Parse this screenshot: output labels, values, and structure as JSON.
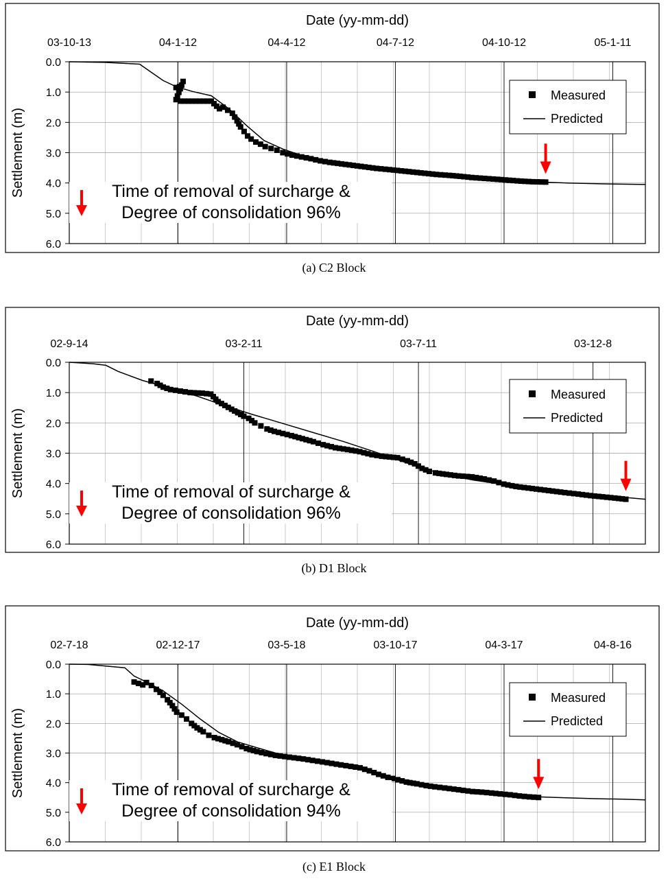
{
  "chart_data": [
    {
      "type": "scatter",
      "caption": "(a) C2 Block",
      "xlabel": "Date (yy-mm-dd)",
      "ylabel": "Settlement (m)",
      "x_tick_labels": [
        "03-10-13",
        "04-1-12",
        "04-4-12",
        "04-7-12",
        "04-10-12",
        "05-1-11"
      ],
      "x_range": [
        "2003-10-13",
        "2005-02-15"
      ],
      "y_ticks": [
        "0.0",
        "1.0",
        "2.0",
        "3.0",
        "4.0",
        "5.0",
        "6.0"
      ],
      "ylim": [
        0,
        6
      ],
      "y_inverted": true,
      "grid": true,
      "legend_position": "top-right",
      "legend": {
        "measured": "Measured",
        "predicted": "Predicted"
      },
      "annotation": {
        "line1": "Time of removal of surcharge &",
        "line2": "Degree of consolidation 96%"
      },
      "removal_date": "2004-11-22",
      "series": [
        {
          "name": "Predicted",
          "kind": "line",
          "x": [
            "2003-10-13",
            "2003-11-12",
            "2003-12-12",
            "2003-12-22",
            "2004-01-01",
            "2004-01-12",
            "2004-01-26",
            "2004-02-11",
            "2004-02-26",
            "2004-03-12",
            "2004-03-27",
            "2004-04-12",
            "2004-04-27",
            "2004-05-12",
            "2004-06-11",
            "2004-07-12",
            "2004-08-11",
            "2004-09-10",
            "2004-10-12",
            "2004-11-11",
            "2004-12-11",
            "2005-01-11",
            "2005-02-15"
          ],
          "y": [
            0.0,
            0.02,
            0.08,
            0.35,
            0.62,
            0.82,
            0.98,
            1.12,
            1.55,
            2.1,
            2.6,
            2.88,
            3.08,
            3.22,
            3.44,
            3.6,
            3.72,
            3.82,
            3.9,
            3.96,
            4.0,
            4.03,
            4.05
          ]
        },
        {
          "name": "Measured",
          "kind": "points",
          "x": [
            "2004-01-12",
            "2004-01-15",
            "2004-01-18",
            "2004-01-12",
            "2004-01-16",
            "2004-02-11",
            "2004-02-18",
            "2004-02-21",
            "2004-02-25",
            "2004-02-29",
            "2004-03-04",
            "2004-03-07",
            "2004-03-10",
            "2004-03-13",
            "2004-03-16",
            "2004-03-20",
            "2004-03-24",
            "2004-03-28",
            "2004-04-02",
            "2004-04-07",
            "2004-04-12",
            "2004-04-20",
            "2004-04-28",
            "2004-05-06",
            "2004-05-14",
            "2004-05-22",
            "2004-06-01",
            "2004-06-11",
            "2004-06-21",
            "2004-07-01",
            "2004-07-12",
            "2004-07-22",
            "2004-08-01",
            "2004-08-11",
            "2004-08-21",
            "2004-09-01",
            "2004-09-10",
            "2004-09-20",
            "2004-10-01",
            "2004-10-12",
            "2004-10-22",
            "2004-11-01",
            "2004-11-11",
            "2004-11-22"
          ],
          "y": [
            0.85,
            0.82,
            0.65,
            1.25,
            1.3,
            1.3,
            1.55,
            1.5,
            1.6,
            1.7,
            1.95,
            2.15,
            2.3,
            2.45,
            2.55,
            2.65,
            2.72,
            2.8,
            2.86,
            2.92,
            3.0,
            3.08,
            3.14,
            3.2,
            3.27,
            3.32,
            3.37,
            3.42,
            3.47,
            3.52,
            3.56,
            3.6,
            3.64,
            3.68,
            3.72,
            3.75,
            3.78,
            3.82,
            3.85,
            3.88,
            3.91,
            3.94,
            3.96,
            3.97
          ]
        }
      ]
    },
    {
      "type": "scatter",
      "caption": "(b) D1 Block",
      "xlabel": "Date (yy-mm-dd)",
      "ylabel": "Settlement (m)",
      "x_tick_labels": [
        "02-9-14",
        "03-2-11",
        "03-7-11",
        "03-12-8"
      ],
      "x_range": [
        "2002-09-14",
        "2003-12-30"
      ],
      "y_ticks": [
        "0.0",
        "1.0",
        "2.0",
        "3.0",
        "4.0",
        "5.0",
        "6.0"
      ],
      "ylim": [
        0,
        6
      ],
      "y_inverted": true,
      "grid": true,
      "legend_position": "top-right",
      "legend": {
        "measured": "Measured",
        "predicted": "Predicted"
      },
      "annotation": {
        "line1": "Time of removal of surcharge &",
        "line2": "Degree of consolidation 96%"
      },
      "removal_date": "2003-12-14",
      "series": [
        {
          "name": "Predicted",
          "kind": "line",
          "x": [
            "2002-09-14",
            "2002-10-04",
            "2002-10-14",
            "2002-10-24",
            "2002-11-13",
            "2002-12-08",
            "2002-12-28",
            "2003-01-17",
            "2003-02-11",
            "2003-03-08",
            "2003-04-02",
            "2003-04-27",
            "2003-05-22",
            "2003-06-16",
            "2003-07-11",
            "2003-08-10",
            "2003-09-09",
            "2003-10-09",
            "2003-11-08",
            "2003-12-08",
            "2003-12-30"
          ],
          "y": [
            0.0,
            0.05,
            0.1,
            0.3,
            0.6,
            0.88,
            1.12,
            1.4,
            1.72,
            2.02,
            2.32,
            2.62,
            2.95,
            3.3,
            3.62,
            3.88,
            4.06,
            4.2,
            4.32,
            4.44,
            4.52
          ]
        },
        {
          "name": "Measured",
          "kind": "points",
          "x": [
            "2002-11-20",
            "2002-11-25",
            "2002-11-30",
            "2002-12-06",
            "2002-12-14",
            "2002-12-22",
            "2003-01-01",
            "2003-01-08",
            "2003-01-14",
            "2003-01-25",
            "2003-02-04",
            "2003-02-08",
            "2003-02-13",
            "2003-02-18",
            "2003-02-23",
            "2003-03-01",
            "2003-03-08",
            "2003-03-15",
            "2003-03-24",
            "2003-04-02",
            "2003-04-10",
            "2003-04-20",
            "2003-04-30",
            "2003-05-10",
            "2003-05-20",
            "2003-05-28",
            "2003-06-10",
            "2003-06-18",
            "2003-06-24",
            "2003-06-30",
            "2003-07-06",
            "2003-07-11",
            "2003-07-20",
            "2003-07-30",
            "2003-08-10",
            "2003-08-20",
            "2003-08-28",
            "2003-09-05",
            "2003-09-15",
            "2003-09-25",
            "2003-10-05",
            "2003-10-15",
            "2003-10-25",
            "2003-11-05",
            "2003-11-15",
            "2003-11-25",
            "2003-12-05",
            "2003-12-14"
          ],
          "y": [
            0.62,
            0.7,
            0.82,
            0.9,
            0.95,
            1.0,
            1.02,
            1.05,
            1.3,
            1.55,
            1.78,
            1.85,
            2.0,
            2.1,
            2.2,
            2.28,
            2.35,
            2.42,
            2.52,
            2.62,
            2.72,
            2.82,
            2.88,
            2.95,
            3.05,
            3.1,
            3.15,
            3.25,
            3.35,
            3.5,
            3.6,
            3.65,
            3.7,
            3.75,
            3.78,
            3.85,
            3.92,
            4.02,
            4.1,
            4.15,
            4.2,
            4.25,
            4.3,
            4.35,
            4.4,
            4.44,
            4.48,
            4.52
          ]
        }
      ]
    },
    {
      "type": "scatter",
      "caption": "(c) E1 Block",
      "xlabel": "Date (yy-mm-dd)",
      "ylabel": "Settlement (m)",
      "x_tick_labels": [
        "02-7-18",
        "02-12-17",
        "03-5-18",
        "03-10-17",
        "04-3-17",
        "04-8-16"
      ],
      "x_range": [
        "2002-07-18",
        "2005-02-05"
      ],
      "y_ticks": [
        "0.0",
        "1.0",
        "2.0",
        "3.0",
        "4.0",
        "5.0",
        "6.0"
      ],
      "ylim": [
        0,
        6
      ],
      "y_inverted": true,
      "grid": true,
      "legend_position": "top-right",
      "legend": {
        "measured": "Measured",
        "predicted": "Predicted"
      },
      "annotation": {
        "line1": "Time of removal of surcharge &",
        "line2": "Degree of consolidation 94%"
      },
      "removal_date": "2004-08-16",
      "series": [
        {
          "name": "Predicted",
          "kind": "line",
          "x": [
            "2002-07-18",
            "2002-08-17",
            "2002-10-16",
            "2002-10-31",
            "2002-11-20",
            "2002-12-17",
            "2003-01-16",
            "2003-02-15",
            "2003-03-17",
            "2003-04-16",
            "2003-05-18",
            "2003-06-17",
            "2003-07-17",
            "2003-08-16",
            "2003-09-16",
            "2003-10-17",
            "2003-11-16",
            "2003-12-16",
            "2004-01-15",
            "2004-02-16",
            "2004-03-17",
            "2004-04-16",
            "2004-05-16",
            "2004-06-15",
            "2004-07-16",
            "2004-08-16",
            "2004-09-30",
            "2004-11-15",
            "2004-12-31",
            "2005-02-05"
          ],
          "y": [
            0.0,
            0.01,
            0.12,
            0.4,
            0.6,
            0.9,
            1.35,
            1.85,
            2.3,
            2.62,
            2.82,
            3.0,
            3.12,
            3.2,
            3.3,
            3.4,
            3.6,
            3.8,
            3.96,
            4.08,
            4.18,
            4.27,
            4.33,
            4.39,
            4.44,
            4.48,
            4.51,
            4.54,
            4.56,
            4.58
          ]
        },
        {
          "name": "Measured",
          "kind": "points",
          "x": [
            "2002-10-31",
            "2002-11-07",
            "2002-11-14",
            "2002-11-20",
            "2002-11-28",
            "2002-12-06",
            "2002-12-12",
            "2002-12-17",
            "2002-12-24",
            "2003-01-01",
            "2003-01-08",
            "2003-01-16",
            "2003-01-24",
            "2003-02-01",
            "2003-02-10",
            "2003-02-20",
            "2003-03-01",
            "2003-03-10",
            "2003-03-22",
            "2003-04-02",
            "2003-04-16",
            "2003-05-01",
            "2003-05-18",
            "2003-06-02",
            "2003-06-17",
            "2003-07-02",
            "2003-07-17",
            "2003-08-01",
            "2003-08-16",
            "2003-09-01",
            "2003-09-16",
            "2003-10-01",
            "2003-10-17",
            "2003-11-01",
            "2003-11-16",
            "2003-12-01",
            "2003-12-16",
            "2004-01-01",
            "2004-01-15",
            "2004-02-01",
            "2004-02-16",
            "2004-03-01",
            "2004-03-17",
            "2004-04-01",
            "2004-04-16",
            "2004-05-01",
            "2004-05-16",
            "2004-06-01",
            "2004-06-15",
            "2004-07-01",
            "2004-07-16",
            "2004-08-01",
            "2004-08-16"
          ],
          "y": [
            0.6,
            0.65,
            0.7,
            0.62,
            0.72,
            0.85,
            0.95,
            1.05,
            1.2,
            1.4,
            1.62,
            1.72,
            1.85,
            2.0,
            2.15,
            2.28,
            2.4,
            2.48,
            2.55,
            2.62,
            2.72,
            2.85,
            2.95,
            3.02,
            3.08,
            3.12,
            3.16,
            3.2,
            3.25,
            3.3,
            3.35,
            3.4,
            3.45,
            3.5,
            3.6,
            3.72,
            3.82,
            3.9,
            3.98,
            4.04,
            4.1,
            4.14,
            4.18,
            4.22,
            4.26,
            4.3,
            4.32,
            4.35,
            4.38,
            4.41,
            4.45,
            4.48,
            4.5
          ]
        }
      ]
    }
  ]
}
